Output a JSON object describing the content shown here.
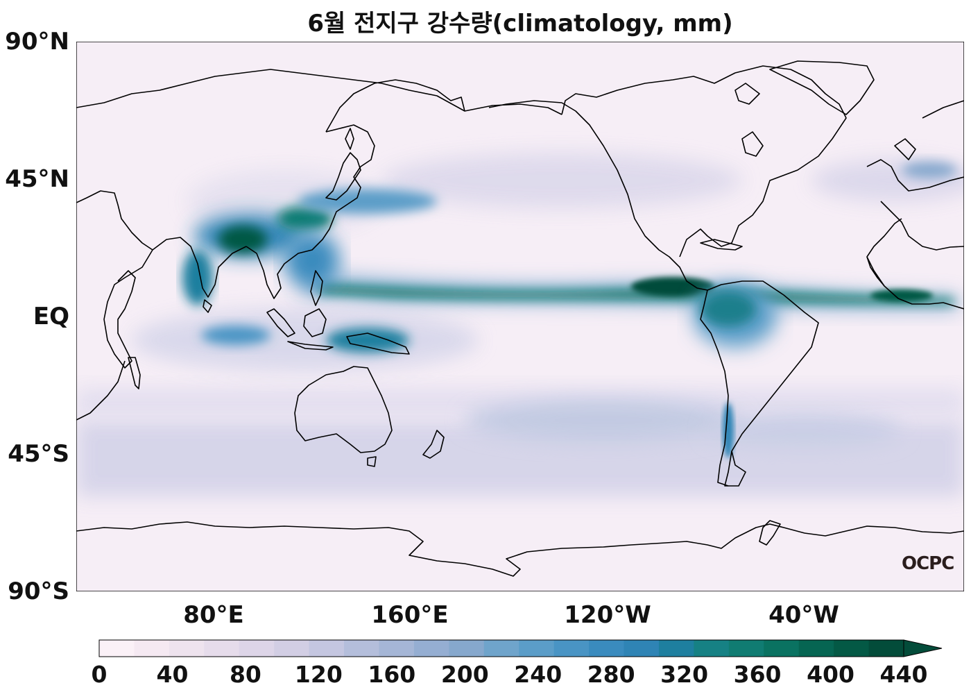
{
  "title": "6월 전지구 강수량(climatology, mm)",
  "y_axis": {
    "ticks": [
      "90°N",
      "45°N",
      "EQ",
      "45°S",
      "90°S"
    ]
  },
  "x_axis": {
    "ticks": [
      "80°E",
      "160°E",
      "120°W",
      "40°W"
    ]
  },
  "colorbar": {
    "ticks": [
      "0",
      "40",
      "80",
      "120",
      "160",
      "200",
      "240",
      "280",
      "320",
      "360",
      "400",
      "440"
    ],
    "extend": "max",
    "colors": [
      "#fbf1f7",
      "#f5e9f2",
      "#eee3ee",
      "#e6dceb",
      "#ddd5e8",
      "#d2cee4",
      "#c4c6e0",
      "#b4bedb",
      "#a5b6d6",
      "#95aed2",
      "#86a8cd",
      "#6fa4cb",
      "#5b9dc8",
      "#4994c4",
      "#3a8bbe",
      "#2f84b5",
      "#1e7f9f",
      "#168184",
      "#107c72",
      "#0a7261",
      "#066552",
      "#045945",
      "#034c3a"
    ]
  },
  "logo_text": "OCPC",
  "colors": {
    "ocean_background": "#f5eff6",
    "itcz": "#05725f",
    "coastline": "#000000"
  }
}
